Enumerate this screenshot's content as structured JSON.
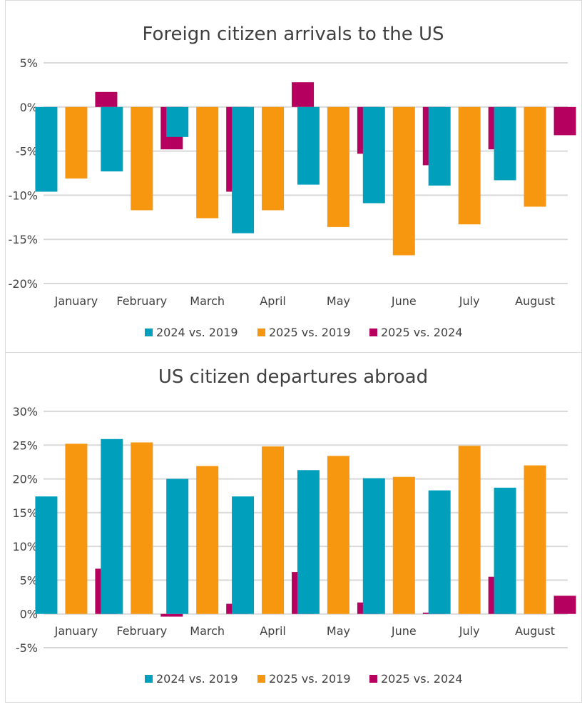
{
  "colors": {
    "2024 vs. 2019": "#00a0bd",
    "2025 vs. 2019": "#f7960f",
    "2025 vs. 2024": "#b5005f"
  },
  "chart_data": [
    {
      "type": "bar",
      "title": "Foreign citizen arrivals to the US",
      "xlabel": "",
      "ylabel": "",
      "categories": [
        "January",
        "February",
        "March",
        "April",
        "May",
        "June",
        "July",
        "August"
      ],
      "ylim": [
        -20,
        5
      ],
      "yticks": [
        5,
        0,
        -5,
        -10,
        -15,
        -20
      ],
      "ytick_labels": [
        "5%",
        "0%",
        "-5%",
        "-10%",
        "-15%",
        "-20%"
      ],
      "grid": true,
      "legend": "bottom",
      "series": [
        {
          "name": "2024 vs. 2019",
          "values": [
            -9.6,
            -7.3,
            -3.4,
            -14.3,
            -8.8,
            -10.9,
            -8.9,
            -8.3
          ]
        },
        {
          "name": "2025 vs. 2019",
          "values": [
            -8.1,
            -11.7,
            -12.6,
            -11.7,
            -13.6,
            -16.8,
            -13.3,
            -11.3
          ]
        },
        {
          "name": "2025 vs. 2024",
          "values": [
            1.7,
            -4.8,
            -9.6,
            2.8,
            -5.3,
            -6.6,
            -4.8,
            -3.2
          ]
        }
      ]
    },
    {
      "type": "bar",
      "title": "US citizen departures abroad",
      "xlabel": "",
      "ylabel": "",
      "categories": [
        "January",
        "February",
        "March",
        "April",
        "May",
        "June",
        "July",
        "August"
      ],
      "ylim": [
        -5,
        30
      ],
      "yticks": [
        30,
        25,
        20,
        15,
        10,
        5,
        0,
        -5
      ],
      "ytick_labels": [
        "30%",
        "25%",
        "20%",
        "15%",
        "10%",
        "5%",
        "0%",
        "-5%"
      ],
      "grid": true,
      "legend": "bottom",
      "series": [
        {
          "name": "2024 vs. 2019",
          "values": [
            17.4,
            25.9,
            20.0,
            17.4,
            21.3,
            20.1,
            18.3,
            18.7
          ]
        },
        {
          "name": "2025 vs. 2019",
          "values": [
            25.2,
            25.4,
            21.9,
            24.8,
            23.4,
            20.3,
            24.9,
            22.0
          ]
        },
        {
          "name": "2025 vs. 2024",
          "values": [
            6.7,
            -0.4,
            1.5,
            6.2,
            1.7,
            0.2,
            5.5,
            2.7
          ]
        }
      ]
    }
  ]
}
